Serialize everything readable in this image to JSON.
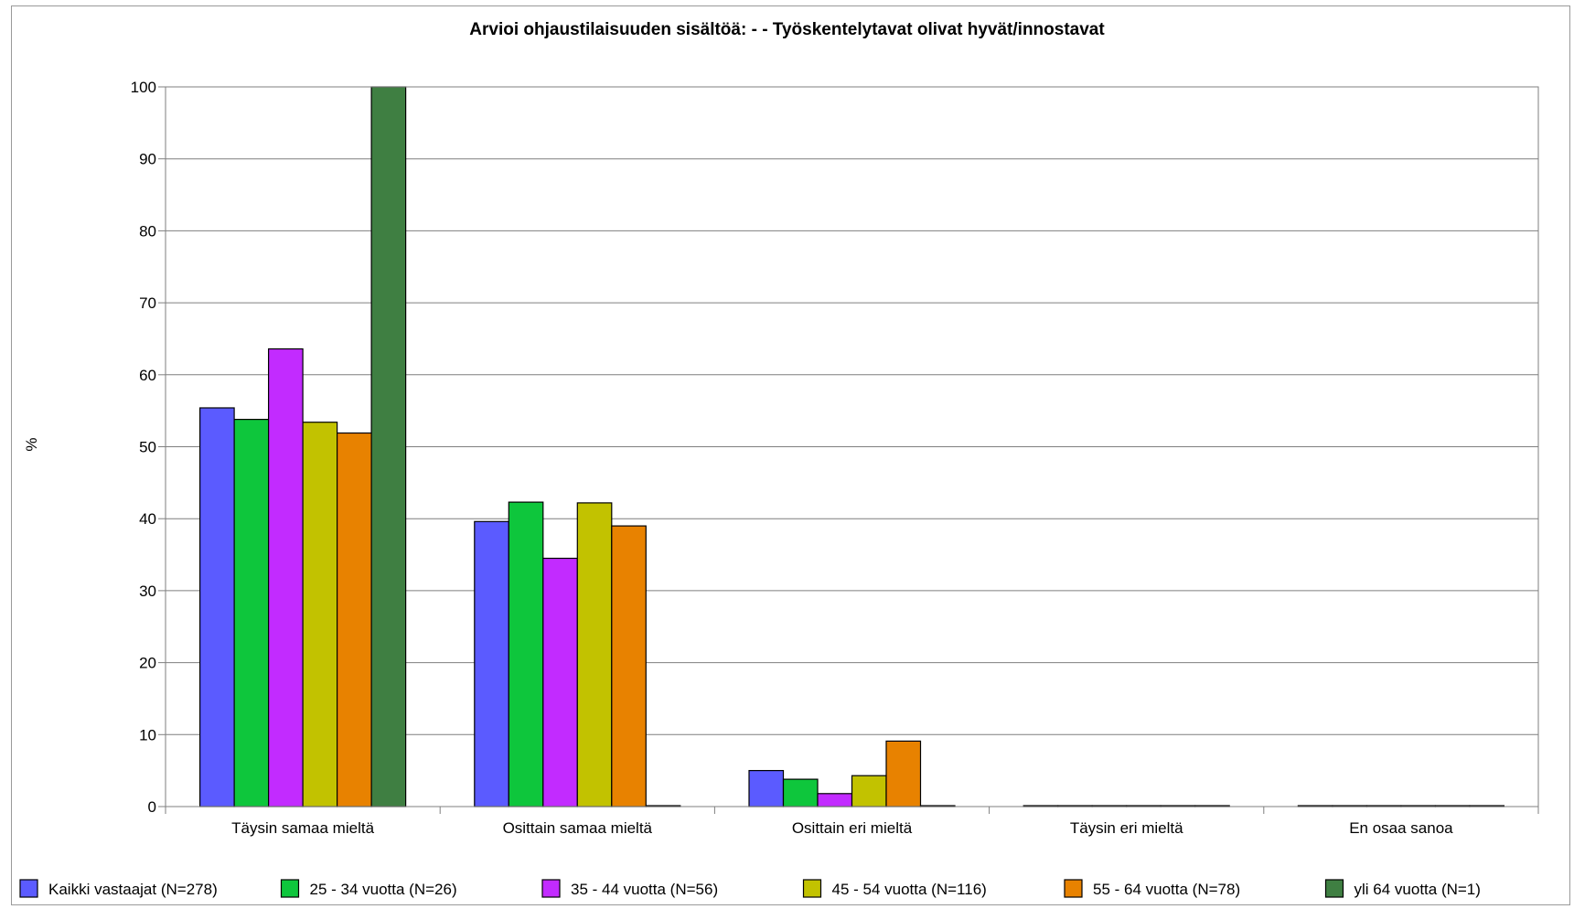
{
  "chart_data": {
    "type": "bar",
    "title": "Arvioi ohjaustilaisuuden sisältöä: -  - Työskentelytavat olivat hyvät/innostavat",
    "xlabel": "",
    "ylabel": "%",
    "ylim": [
      0,
      100
    ],
    "yticks": [
      0,
      10,
      20,
      30,
      40,
      50,
      60,
      70,
      80,
      90,
      100
    ],
    "grid": true,
    "legend_position": "bottom",
    "categories": [
      "Täysin samaa mieltä",
      "Osittain samaa mieltä",
      "Osittain eri mieltä",
      "Täysin eri mieltä",
      "En osaa sanoa"
    ],
    "series": [
      {
        "name": "Kaikki vastaajat (N=278)",
        "color": "#5b5bff",
        "values": [
          55.4,
          39.6,
          5.0,
          0,
          0
        ]
      },
      {
        "name": "25 - 34 vuotta (N=26)",
        "color": "#0ec63c",
        "values": [
          53.8,
          42.3,
          3.8,
          0,
          0
        ]
      },
      {
        "name": "35 - 44 vuotta (N=56)",
        "color": "#c22bff",
        "values": [
          63.6,
          34.5,
          1.8,
          0,
          0
        ]
      },
      {
        "name": "45 - 54 vuotta (N=116)",
        "color": "#c2c200",
        "values": [
          53.4,
          42.2,
          4.3,
          0,
          0
        ]
      },
      {
        "name": "55 - 64 vuotta (N=78)",
        "color": "#e88200",
        "values": [
          51.9,
          39.0,
          9.1,
          0,
          0
        ]
      },
      {
        "name": "yli 64 vuotta (N=1)",
        "color": "#3f7f42",
        "values": [
          100,
          0,
          0,
          0,
          0
        ]
      }
    ]
  }
}
